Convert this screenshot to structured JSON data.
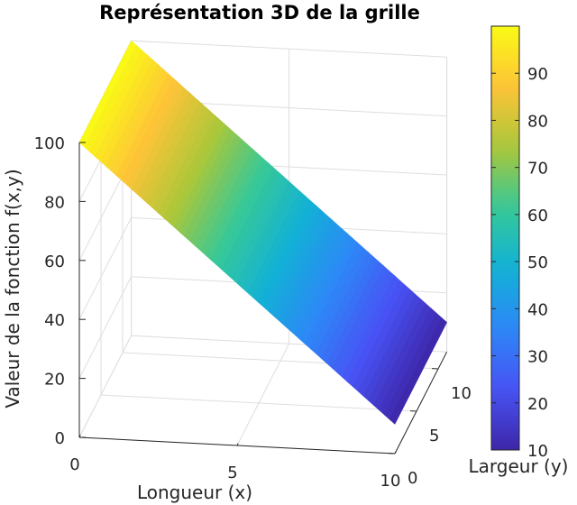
{
  "chart_data": {
    "type": "surface",
    "title": "Représentation 3D de la grille",
    "xlabel": "Longueur (x)",
    "ylabel": "Largeur (y)",
    "zlabel": "Valeur de la fonction f(x,y)",
    "xlim": [
      0,
      10
    ],
    "ylim": [
      0,
      12
    ],
    "zlim": [
      0,
      100
    ],
    "xticks": [
      0,
      5,
      10
    ],
    "yticks": [
      0,
      5,
      10
    ],
    "zticks": [
      0,
      20,
      40,
      60,
      80,
      100
    ],
    "x": [
      0,
      2,
      4,
      6,
      8,
      10
    ],
    "y": [
      0,
      2,
      4,
      6,
      8,
      10
    ],
    "z_function": "f(x,y) = 100 - 9x",
    "z_corners": {
      "x0": 100,
      "x10": 10
    },
    "grid": true,
    "colormap": "parula",
    "colorbar": {
      "limits": [
        10,
        100
      ],
      "ticks": [
        10,
        20,
        30,
        40,
        50,
        60,
        70,
        80,
        90
      ]
    }
  }
}
